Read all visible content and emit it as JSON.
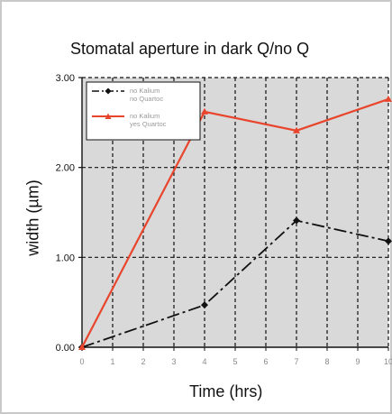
{
  "chart_data": {
    "type": "line",
    "title": "Stomatal aperture in dark Q/no Q",
    "xlabel": "Time (hrs)",
    "ylabel": "width (µm)",
    "xlim": [
      0,
      10
    ],
    "ylim": [
      0,
      3
    ],
    "x_ticks": [
      "0",
      "1",
      "2",
      "3",
      "4",
      "5",
      "6",
      "7",
      "8",
      "9",
      "10"
    ],
    "y_ticks": [
      "0.00",
      "1.00",
      "2.00",
      "3.00"
    ],
    "grid": true,
    "legend_placement": "top-left",
    "series": [
      {
        "name": "no Kalium no Quartoc",
        "legend_line1": "no Kalium",
        "legend_line2": "no Quartoc",
        "color": "#111111",
        "style": "dashdot",
        "marker": "diamond",
        "x": [
          0,
          4,
          7,
          10
        ],
        "y": [
          0.0,
          0.47,
          1.41,
          1.18
        ]
      },
      {
        "name": "no Kalium yes Quartoc",
        "legend_line1": "no Kalium",
        "legend_line2": "yes Quartoc",
        "color": "#e8452c",
        "style": "solid",
        "marker": "triangle",
        "x": [
          0,
          4,
          7,
          10
        ],
        "y": [
          0.0,
          2.62,
          2.41,
          2.76
        ]
      }
    ]
  },
  "colors": {
    "plot_background": "#d9d9d9",
    "grid": "#111111",
    "frame": "#c9c9c9"
  }
}
